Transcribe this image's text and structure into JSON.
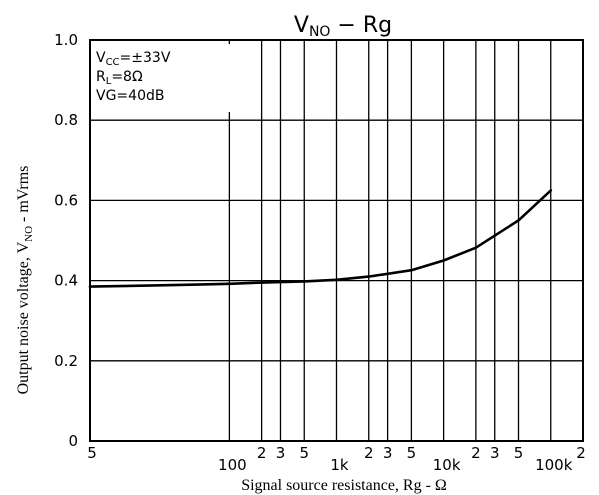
{
  "chart_data": {
    "type": "line",
    "title": {
      "main": "V",
      "sub": "NO",
      "rest": " − Rg"
    },
    "xlabel": "Signal source resistance, Rg - Ω",
    "ylabel": {
      "main": "Output noise voltage, V",
      "sub": "NO",
      "rest": " - mVrms"
    },
    "x_scale": "log",
    "xlim": [
      5,
      200000
    ],
    "ylim": [
      0,
      1.0
    ],
    "grid": true,
    "y_ticks": [
      {
        "value": 0,
        "label": "0"
      },
      {
        "value": 0.2,
        "label": "0.2"
      },
      {
        "value": 0.4,
        "label": "0.4"
      },
      {
        "value": 0.6,
        "label": "0.6"
      },
      {
        "value": 0.8,
        "label": "0.8"
      },
      {
        "value": 1.0,
        "label": "1.0"
      }
    ],
    "x_major_ticks": [
      {
        "value": 100,
        "label": "100"
      },
      {
        "value": 1000,
        "label": "1k"
      },
      {
        "value": 10000,
        "label": "10k"
      },
      {
        "value": 100000,
        "label": "100k"
      }
    ],
    "x_minor_ticks": [
      {
        "value": 5,
        "label": "5"
      },
      {
        "value": 200,
        "label": "2"
      },
      {
        "value": 300,
        "label": "3"
      },
      {
        "value": 500,
        "label": "5"
      },
      {
        "value": 2000,
        "label": "2"
      },
      {
        "value": 3000,
        "label": "3"
      },
      {
        "value": 5000,
        "label": "5"
      },
      {
        "value": 20000,
        "label": "2"
      },
      {
        "value": 30000,
        "label": "3"
      },
      {
        "value": 50000,
        "label": "5"
      },
      {
        "value": 200000,
        "label": "2"
      }
    ],
    "x_grid_values": [
      100,
      200,
      300,
      500,
      1000,
      2000,
      3000,
      5000,
      10000,
      20000,
      30000,
      50000,
      100000
    ],
    "conditions": [
      {
        "main": "V",
        "sub": "CC",
        "rest": "=±33V"
      },
      {
        "main": "R",
        "sub": "L",
        "rest": "=8Ω"
      },
      {
        "main": "VG=40dB",
        "sub": "",
        "rest": ""
      }
    ],
    "series": [
      {
        "x": [
          5,
          20,
          50,
          100,
          200,
          500,
          1000,
          2000,
          5000,
          10000,
          20000,
          50000,
          100000
        ],
        "y": [
          0.385,
          0.388,
          0.39,
          0.392,
          0.395,
          0.398,
          0.402,
          0.41,
          0.426,
          0.45,
          0.482,
          0.55,
          0.625
        ]
      }
    ]
  }
}
